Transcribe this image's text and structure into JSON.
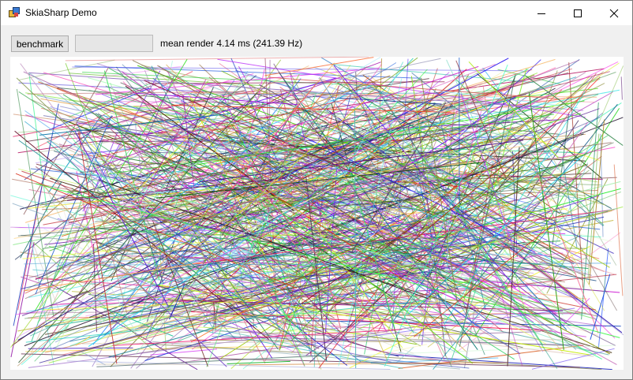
{
  "window": {
    "title": "SkiaSharp Demo",
    "icons": {
      "app": "winforms-app-icon",
      "minimize": "minimize-icon",
      "maximize": "maximize-icon",
      "close": "close-icon"
    }
  },
  "toolbar": {
    "benchmark_label": "benchmark",
    "progress_fraction": 0,
    "status_text": "mean render 4.14 ms (241.39 Hz)"
  },
  "canvas": {
    "description_type": "random-colored-lines",
    "background": "#ffffff"
  }
}
